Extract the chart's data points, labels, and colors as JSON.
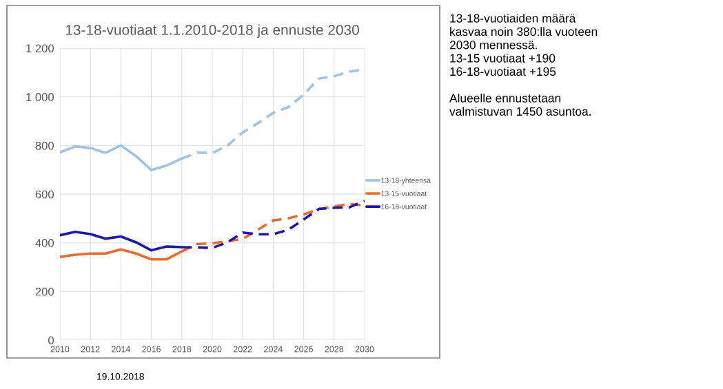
{
  "chart_data": {
    "type": "line",
    "title": "13-18-vuotiaat 1.1.2010-2018 ja ennuste 2030",
    "xlim": [
      2010,
      2030
    ],
    "xticks": [
      2010,
      2012,
      2014,
      2016,
      2018,
      2020,
      2022,
      2024,
      2026,
      2028,
      2030
    ],
    "ylim": [
      0,
      1200
    ],
    "yticks": [
      0,
      200,
      400,
      600,
      800,
      {
        "value": 1000,
        "label": "1 000"
      },
      {
        "value": 1200,
        "label": "1 200"
      }
    ],
    "grid": true,
    "legend": "right",
    "series": [
      {
        "name": "13-18-yhteensä",
        "color": "#9dc3e6",
        "line_style": "solid",
        "x": [
          2010,
          2011,
          2012,
          2013,
          2014,
          2015,
          2016,
          2017,
          2018
        ],
        "values": [
          772,
          796,
          790,
          770,
          800,
          756,
          699,
          718,
          746
        ]
      },
      {
        "name": "13-15-vuotiaat",
        "color": "#ed6b2a",
        "line_style": "solid",
        "x": [
          2010,
          2011,
          2012,
          2013,
          2014,
          2015,
          2016,
          2017,
          2018
        ],
        "values": [
          342,
          351,
          356,
          356,
          373,
          356,
          332,
          332,
          365
        ]
      },
      {
        "name": "16-18-vuotiaat",
        "color": "#1a1aa6",
        "line_style": "solid",
        "x": [
          2010,
          2011,
          2012,
          2013,
          2014,
          2015,
          2016,
          2017,
          2018
        ],
        "values": [
          431,
          445,
          436,
          417,
          426,
          402,
          369,
          385,
          382
        ]
      },
      {
        "color": "#9dc3e6",
        "line_style": "dashed",
        "x": [
          2018,
          2019,
          2020,
          2021,
          2022,
          2023,
          2024,
          2025,
          2026,
          2027,
          2028,
          2029,
          2030
        ],
        "values": [
          746,
          771,
          769,
          800,
          854,
          892,
          934,
          958,
          1009,
          1075,
          1085,
          1104,
          1113
        ]
      },
      {
        "color": "#ed6b2a",
        "line_style": "dashed",
        "x": [
          2018,
          2019,
          2020,
          2021,
          2022,
          2023,
          2024,
          2025,
          2026,
          2027,
          2028,
          2029,
          2030
        ],
        "values": [
          365,
          395,
          398,
          407,
          416,
          454,
          492,
          501,
          516,
          539,
          549,
          560,
          553
        ]
      },
      {
        "color": "#1a1aa6",
        "line_style": "dashed",
        "x": [
          2018,
          2019,
          2020,
          2021,
          2022,
          2023,
          2024,
          2025,
          2026,
          2027,
          2028,
          2029,
          2030
        ],
        "values": [
          382,
          381,
          379,
          402,
          442,
          435,
          435,
          454,
          496,
          539,
          544,
          546,
          572
        ]
      }
    ],
    "annotations": [
      "13-18-vuotiaiden määrä\nkasvaa noin 380:lla vuoteen\n2030 mennessä.\n13-15 vuotiaat +190\n16-18-vuotiaat +195\n\nAlueelle ennustetaan\nvalmistuvan 1450 asuntoa.",
      "19.10.2018"
    ]
  }
}
